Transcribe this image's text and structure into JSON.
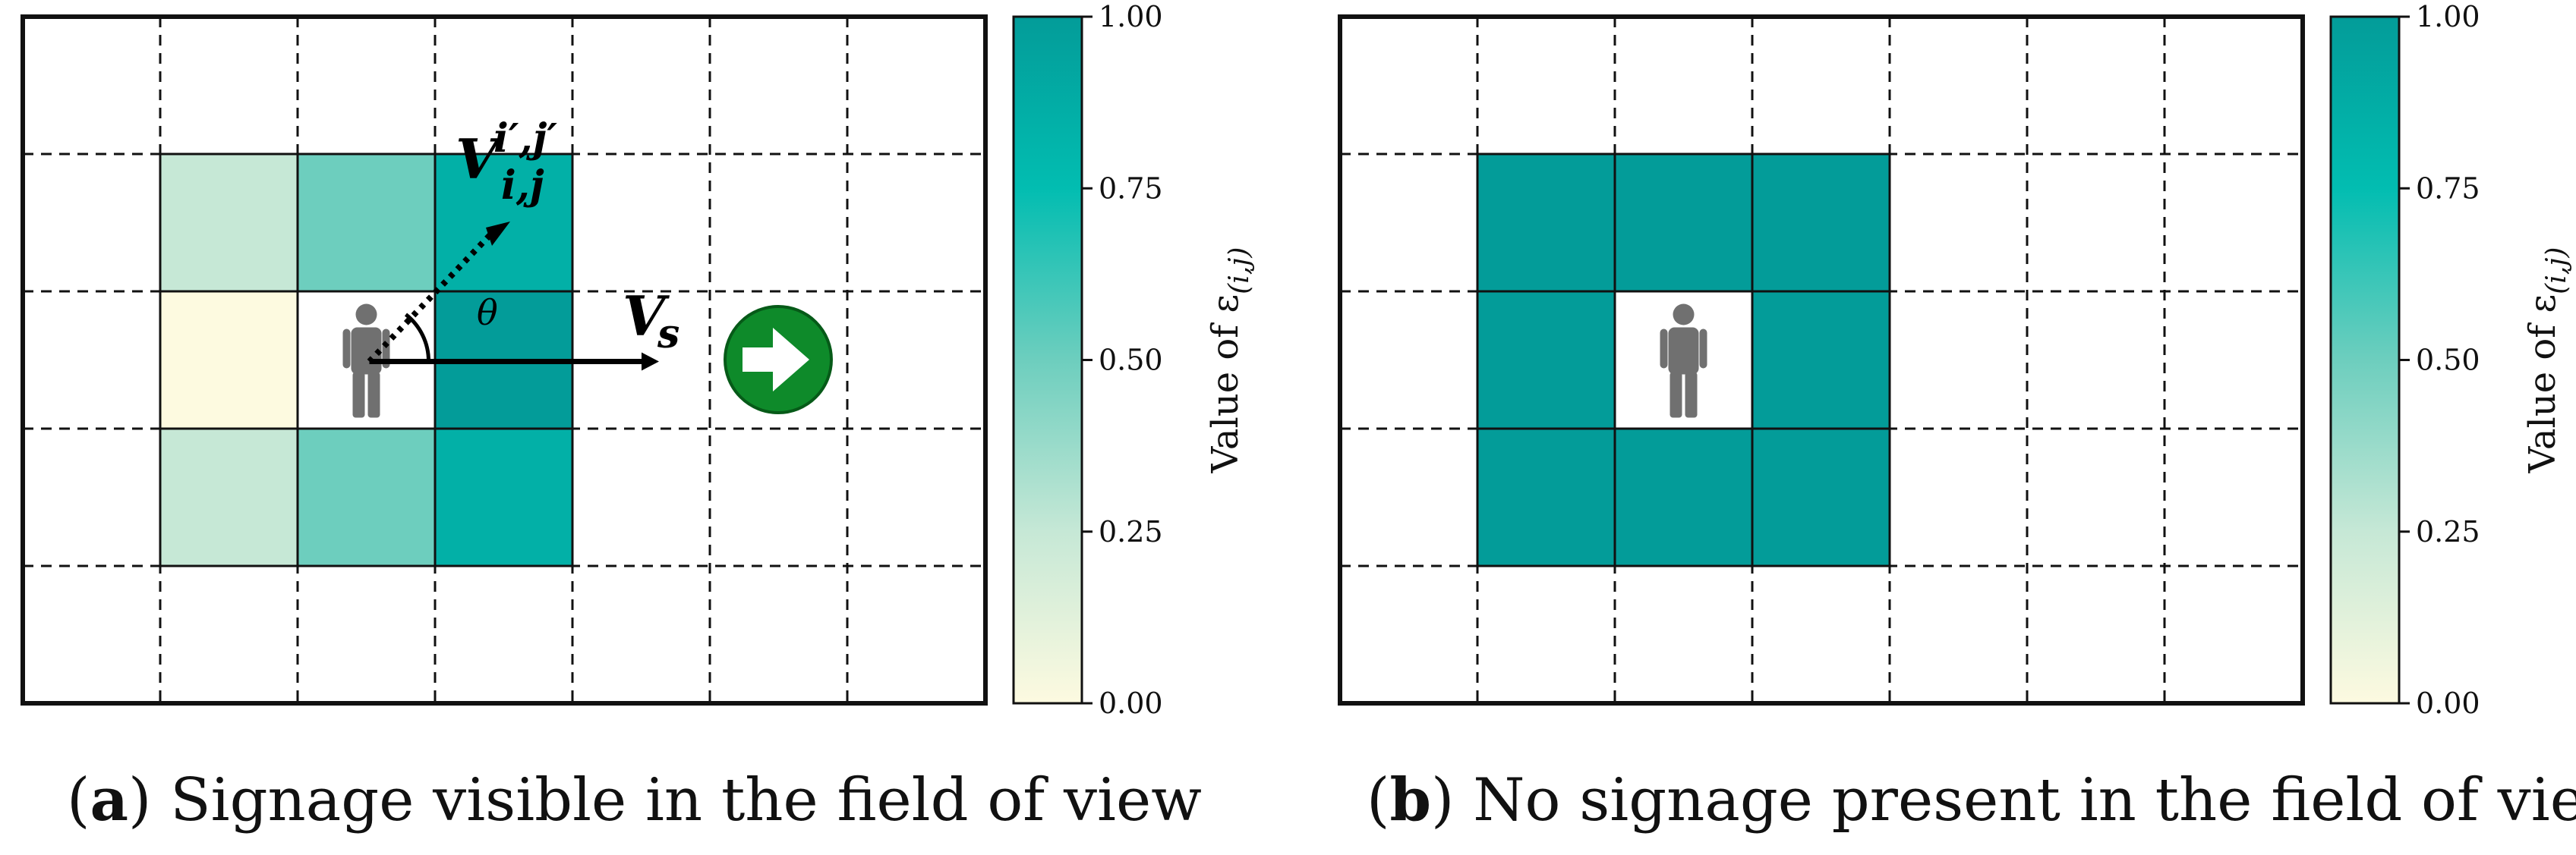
{
  "colorscale": {
    "stops": [
      {
        "v": 0.0,
        "color": "#fdfae0"
      },
      {
        "v": 0.25,
        "color": "#c6e8d6"
      },
      {
        "v": 0.5,
        "color": "#6dcebe"
      },
      {
        "v": 0.75,
        "color": "#02bdb1"
      },
      {
        "v": 1.0,
        "color": "#039c99"
      }
    ]
  },
  "panels": [
    {
      "id": "a",
      "letter": "a",
      "caption": "Signage visible in the field of view",
      "pedestrian_cell": {
        "col": 2,
        "row": 2
      },
      "cells": [
        {
          "col": 1,
          "row": 1,
          "value": 0.25
        },
        {
          "col": 2,
          "row": 1,
          "value": 0.5
        },
        {
          "col": 3,
          "row": 1,
          "value": 0.85
        },
        {
          "col": 1,
          "row": 2,
          "value": 0.0
        },
        {
          "col": 3,
          "row": 2,
          "value": 1.0
        },
        {
          "col": 1,
          "row": 3,
          "value": 0.25
        },
        {
          "col": 2,
          "row": 3,
          "value": 0.5
        },
        {
          "col": 3,
          "row": 3,
          "value": 0.85
        }
      ],
      "vector_labels": {
        "velocity": "V",
        "velocity_sub": "i,j",
        "velocity_sup": "i′,j′",
        "signage": "V",
        "signage_sub": "s",
        "angle": "θ"
      },
      "signage_icon": "green-arrow-sign-icon"
    },
    {
      "id": "b",
      "letter": "b",
      "caption": "No signage present in the field of view",
      "pedestrian_cell": {
        "col": 2,
        "row": 2
      },
      "cells": [
        {
          "col": 1,
          "row": 1,
          "value": 1.0
        },
        {
          "col": 2,
          "row": 1,
          "value": 1.0
        },
        {
          "col": 3,
          "row": 1,
          "value": 1.0
        },
        {
          "col": 1,
          "row": 2,
          "value": 1.0
        },
        {
          "col": 3,
          "row": 2,
          "value": 1.0
        },
        {
          "col": 1,
          "row": 3,
          "value": 1.0
        },
        {
          "col": 2,
          "row": 3,
          "value": 1.0
        },
        {
          "col": 3,
          "row": 3,
          "value": 1.0
        }
      ]
    }
  ],
  "colorbar": {
    "ticks": [
      "0.00",
      "0.25",
      "0.50",
      "0.75",
      "1.00"
    ],
    "tick_values": [
      0,
      0.25,
      0.5,
      0.75,
      1.0
    ],
    "label": "Value of ε",
    "label_sub": "(i,j)"
  }
}
